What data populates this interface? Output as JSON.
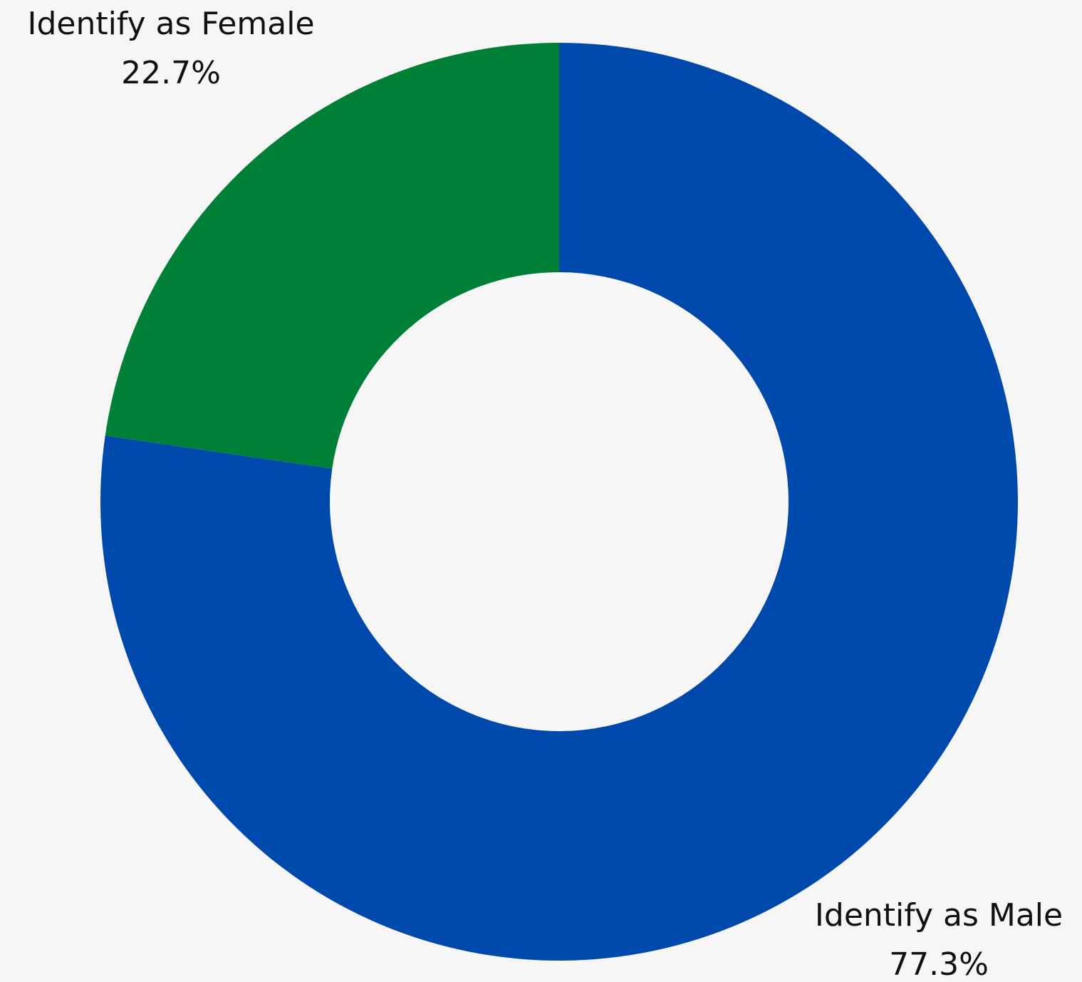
{
  "chart_data": {
    "type": "pie",
    "donut": true,
    "title": "",
    "categories": [
      "Identify as Male",
      "Identify as Female"
    ],
    "values": [
      77.3,
      22.7
    ],
    "value_labels": [
      "77.3%",
      "22.7%"
    ],
    "colors": [
      "#0049ac",
      "#007f36"
    ],
    "legend": "none",
    "background": "#f6f6f6"
  }
}
